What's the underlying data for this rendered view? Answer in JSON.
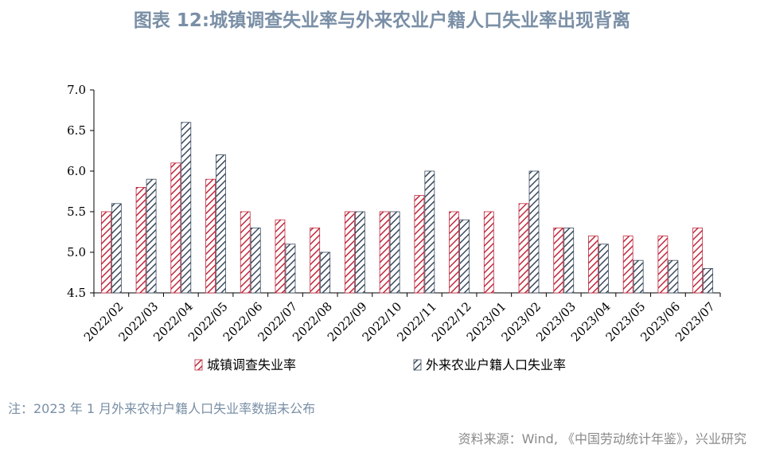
{
  "title": "图表 12:城镇调查失业率与外来农业户籍人口失业率出现背离",
  "note": "注：2023 年 1 月外来农村户籍人口失业率数据未公布",
  "source": "资料来源：Wind, 《中国劳动统计年鉴》，兴业研究",
  "chart_data": {
    "type": "bar",
    "categories": [
      "2022/02",
      "2022/03",
      "2022/04",
      "2022/05",
      "2022/06",
      "2022/07",
      "2022/08",
      "2022/09",
      "2022/10",
      "2022/11",
      "2022/12",
      "2023/01",
      "2023/02",
      "2023/03",
      "2023/04",
      "2023/05",
      "2023/06",
      "2023/07"
    ],
    "series": [
      {
        "name": "城镇调查失业率",
        "color": "#c0283c",
        "values": [
          5.5,
          5.8,
          6.1,
          5.9,
          5.5,
          5.4,
          5.3,
          5.5,
          5.5,
          5.7,
          5.5,
          5.5,
          5.6,
          5.3,
          5.2,
          5.2,
          5.2,
          5.3
        ]
      },
      {
        "name": "外来农业户籍人口失业率",
        "color": "#3a4a5e",
        "values": [
          5.6,
          5.9,
          6.6,
          6.2,
          5.3,
          5.1,
          5.0,
          5.5,
          5.5,
          6.0,
          5.4,
          null,
          6.0,
          5.3,
          5.1,
          4.9,
          4.9,
          4.8
        ]
      }
    ],
    "yticks": [
      "7.0",
      "6.5",
      "6.0",
      "5.5",
      "5.0",
      "4.5"
    ],
    "ylim": [
      4.5,
      7.0
    ],
    "legend_position": "bottom"
  }
}
